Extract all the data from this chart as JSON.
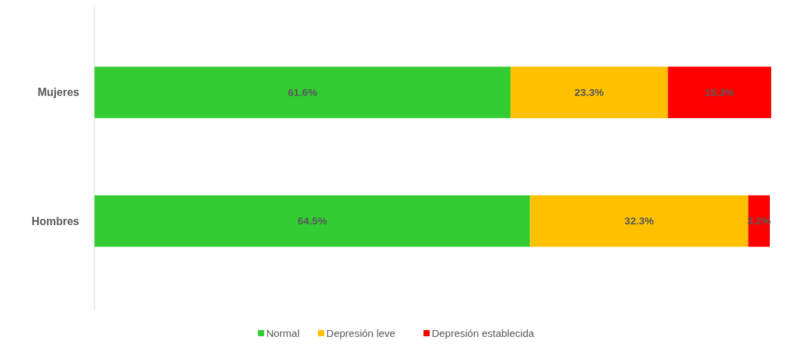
{
  "chart_data": {
    "type": "bar",
    "orientation": "horizontal",
    "stacked": true,
    "categories": [
      "Mujeres",
      "Hombres"
    ],
    "series": [
      {
        "name": "Normal",
        "color": "#33cc33",
        "values": [
          61.6,
          64.5
        ],
        "value_labels": [
          "61.6%",
          "64.5%"
        ]
      },
      {
        "name": "Depresión leve",
        "color": "#ffc000",
        "values": [
          23.3,
          32.3
        ],
        "value_labels": [
          "23.3%",
          "32.3%"
        ]
      },
      {
        "name": "Depresión establecida",
        "color": "#ff0000",
        "values": [
          15.3,
          3.2
        ],
        "value_labels": [
          "15.3%",
          "3.2%"
        ]
      }
    ],
    "tick_labels": "y",
    "legend": "bottom"
  }
}
